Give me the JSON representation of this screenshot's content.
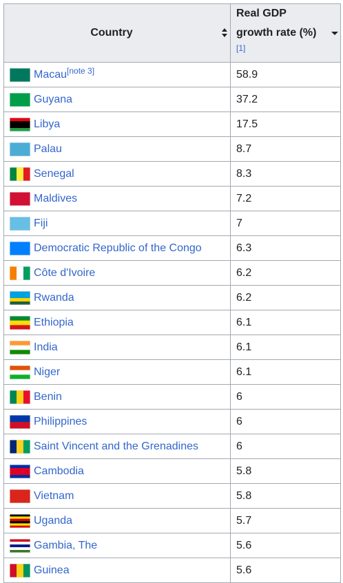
{
  "table": {
    "headers": [
      "Country",
      "Real GDP growth rate (%)"
    ],
    "header_note": "[1]",
    "rows": [
      {
        "country": "Macau",
        "note": "[note 3]",
        "value": 58.9
      },
      {
        "country": "Guyana",
        "value": 37.2
      },
      {
        "country": "Libya",
        "value": 17.5
      },
      {
        "country": "Palau",
        "value": 8.7
      },
      {
        "country": "Senegal",
        "value": 8.3
      },
      {
        "country": "Maldives",
        "value": 7.2
      },
      {
        "country": "Fiji",
        "value": 7
      },
      {
        "country": "Democratic Republic of the Congo",
        "value": 6.3
      },
      {
        "country": "Côte d'Ivoire",
        "value": 6.2
      },
      {
        "country": "Rwanda",
        "value": 6.2
      },
      {
        "country": "Ethiopia",
        "value": 6.1
      },
      {
        "country": "India",
        "value": 6.1
      },
      {
        "country": "Niger",
        "value": 6.1
      },
      {
        "country": "Benin",
        "value": 6
      },
      {
        "country": "Philippines",
        "value": 6
      },
      {
        "country": "Saint Vincent and the Grenadines",
        "value": 6
      },
      {
        "country": "Cambodia",
        "value": 5.8
      },
      {
        "country": "Vietnam",
        "value": 5.8
      },
      {
        "country": "Uganda",
        "value": 5.7
      },
      {
        "country": "Gambia, The",
        "value": 5.6
      },
      {
        "country": "Guinea",
        "value": 5.6
      }
    ]
  }
}
